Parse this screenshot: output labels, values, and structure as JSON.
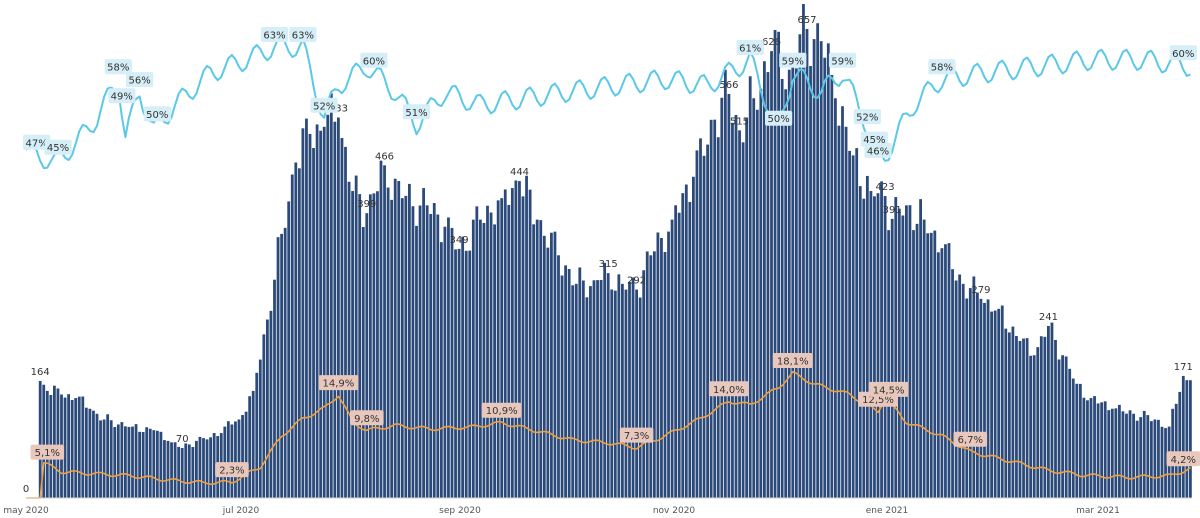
{
  "chart_data": {
    "type": "bar",
    "x_ticks": [
      "may 2020",
      "jul 2020",
      "sep 2020",
      "nov 2020",
      "ene 2021",
      "mar 2021"
    ],
    "colors": {
      "bars": "#2b4a7a",
      "positivity_line": "#f0a040",
      "positivity_label_bg": "#e8c8bc",
      "share_line": "#5ac8e8",
      "share_label_bg": "#d5eef7"
    },
    "bars": {
      "anchors": [
        {
          "day": 0,
          "value": 0
        },
        {
          "day": 3,
          "value": 0
        },
        {
          "day": 4,
          "value": 164
        },
        {
          "day": 6,
          "value": 150
        },
        {
          "day": 10,
          "value": 145
        },
        {
          "day": 14,
          "value": 140
        },
        {
          "day": 18,
          "value": 125
        },
        {
          "day": 22,
          "value": 110
        },
        {
          "day": 30,
          "value": 100
        },
        {
          "day": 36,
          "value": 95
        },
        {
          "day": 40,
          "value": 80
        },
        {
          "day": 44,
          "value": 70
        },
        {
          "day": 48,
          "value": 80
        },
        {
          "day": 52,
          "value": 85
        },
        {
          "day": 56,
          "value": 100
        },
        {
          "day": 60,
          "value": 110
        },
        {
          "day": 64,
          "value": 150
        },
        {
          "day": 68,
          "value": 250
        },
        {
          "day": 72,
          "value": 370
        },
        {
          "day": 76,
          "value": 470
        },
        {
          "day": 80,
          "value": 510
        },
        {
          "day": 84,
          "value": 520
        },
        {
          "day": 88,
          "value": 533
        },
        {
          "day": 92,
          "value": 430
        },
        {
          "day": 96,
          "value": 399
        },
        {
          "day": 101,
          "value": 466
        },
        {
          "day": 106,
          "value": 420
        },
        {
          "day": 113,
          "value": 410
        },
        {
          "day": 118,
          "value": 380
        },
        {
          "day": 122,
          "value": 349
        },
        {
          "day": 128,
          "value": 390
        },
        {
          "day": 134,
          "value": 420
        },
        {
          "day": 139,
          "value": 444
        },
        {
          "day": 144,
          "value": 390
        },
        {
          "day": 150,
          "value": 340
        },
        {
          "day": 155,
          "value": 300
        },
        {
          "day": 160,
          "value": 305
        },
        {
          "day": 164,
          "value": 315
        },
        {
          "day": 168,
          "value": 300
        },
        {
          "day": 172,
          "value": 292
        },
        {
          "day": 176,
          "value": 340
        },
        {
          "day": 182,
          "value": 390
        },
        {
          "day": 188,
          "value": 450
        },
        {
          "day": 194,
          "value": 530
        },
        {
          "day": 198,
          "value": 566
        },
        {
          "day": 201,
          "value": 515
        },
        {
          "day": 205,
          "value": 560
        },
        {
          "day": 210,
          "value": 626
        },
        {
          "day": 215,
          "value": 600
        },
        {
          "day": 220,
          "value": 657
        },
        {
          "day": 224,
          "value": 640
        },
        {
          "day": 228,
          "value": 560
        },
        {
          "day": 233,
          "value": 480
        },
        {
          "day": 238,
          "value": 430
        },
        {
          "day": 242,
          "value": 423
        },
        {
          "day": 244,
          "value": 391
        },
        {
          "day": 248,
          "value": 410
        },
        {
          "day": 253,
          "value": 390
        },
        {
          "day": 258,
          "value": 350
        },
        {
          "day": 264,
          "value": 300
        },
        {
          "day": 269,
          "value": 279
        },
        {
          "day": 274,
          "value": 265
        },
        {
          "day": 280,
          "value": 220
        },
        {
          "day": 284,
          "value": 200
        },
        {
          "day": 288,
          "value": 241
        },
        {
          "day": 292,
          "value": 200
        },
        {
          "day": 296,
          "value": 160
        },
        {
          "day": 300,
          "value": 140
        },
        {
          "day": 306,
          "value": 125
        },
        {
          "day": 312,
          "value": 118
        },
        {
          "day": 318,
          "value": 110
        },
        {
          "day": 322,
          "value": 100
        },
        {
          "day": 326,
          "value": 171
        },
        {
          "day": 328,
          "value": 165
        }
      ],
      "labels": [
        {
          "day": 0,
          "text": "0"
        },
        {
          "day": 4,
          "text": "164"
        },
        {
          "day": 44,
          "text": "70"
        },
        {
          "day": 88,
          "text": "533"
        },
        {
          "day": 96,
          "text": "399"
        },
        {
          "day": 101,
          "text": "466"
        },
        {
          "day": 122,
          "text": "349"
        },
        {
          "day": 139,
          "text": "444"
        },
        {
          "day": 164,
          "text": "315"
        },
        {
          "day": 172,
          "text": "292"
        },
        {
          "day": 198,
          "text": "566"
        },
        {
          "day": 201,
          "text": "515"
        },
        {
          "day": 210,
          "text": "626"
        },
        {
          "day": 220,
          "text": "657"
        },
        {
          "day": 242,
          "text": "423"
        },
        {
          "day": 244,
          "text": "391"
        },
        {
          "day": 269,
          "text": "279"
        },
        {
          "day": 288,
          "text": "241"
        },
        {
          "day": 326,
          "text": "171"
        }
      ]
    },
    "positivity_line": {
      "anchors": [
        {
          "day": 0,
          "value": 0
        },
        {
          "day": 4,
          "value": 0
        },
        {
          "day": 5,
          "value": 5.1
        },
        {
          "day": 10,
          "value": 3.8
        },
        {
          "day": 20,
          "value": 3.5
        },
        {
          "day": 30,
          "value": 3.2
        },
        {
          "day": 40,
          "value": 2.6
        },
        {
          "day": 50,
          "value": 2.2
        },
        {
          "day": 58,
          "value": 2.3
        },
        {
          "day": 66,
          "value": 4.5
        },
        {
          "day": 72,
          "value": 9.0
        },
        {
          "day": 78,
          "value": 11.5
        },
        {
          "day": 84,
          "value": 13.0
        },
        {
          "day": 88,
          "value": 14.9
        },
        {
          "day": 92,
          "value": 11.0
        },
        {
          "day": 96,
          "value": 9.8
        },
        {
          "day": 104,
          "value": 10.5
        },
        {
          "day": 114,
          "value": 10.0
        },
        {
          "day": 126,
          "value": 10.3
        },
        {
          "day": 134,
          "value": 10.9
        },
        {
          "day": 144,
          "value": 9.7
        },
        {
          "day": 154,
          "value": 8.4
        },
        {
          "day": 164,
          "value": 8.0
        },
        {
          "day": 172,
          "value": 7.3
        },
        {
          "day": 180,
          "value": 9.0
        },
        {
          "day": 190,
          "value": 11.5
        },
        {
          "day": 198,
          "value": 14.0
        },
        {
          "day": 204,
          "value": 13.5
        },
        {
          "day": 212,
          "value": 16.0
        },
        {
          "day": 216,
          "value": 18.1
        },
        {
          "day": 222,
          "value": 16.5
        },
        {
          "day": 232,
          "value": 15.0
        },
        {
          "day": 240,
          "value": 12.5
        },
        {
          "day": 242,
          "value": 14.5
        },
        {
          "day": 248,
          "value": 11.0
        },
        {
          "day": 258,
          "value": 9.0
        },
        {
          "day": 266,
          "value": 6.7
        },
        {
          "day": 276,
          "value": 5.5
        },
        {
          "day": 288,
          "value": 4.0
        },
        {
          "day": 298,
          "value": 3.3
        },
        {
          "day": 310,
          "value": 3.0
        },
        {
          "day": 322,
          "value": 3.2
        },
        {
          "day": 328,
          "value": 4.2
        }
      ],
      "labels": [
        {
          "day": 6,
          "text": "5,1%"
        },
        {
          "day": 58,
          "text": "2,3%"
        },
        {
          "day": 88,
          "text": "14,9%"
        },
        {
          "day": 96,
          "text": "9,8%"
        },
        {
          "day": 134,
          "text": "10,9%"
        },
        {
          "day": 172,
          "text": "7,3%"
        },
        {
          "day": 198,
          "text": "14,0%"
        },
        {
          "day": 216,
          "text": "18,1%"
        },
        {
          "day": 240,
          "text": "12,5%"
        },
        {
          "day": 243,
          "text": "14,5%"
        },
        {
          "day": 266,
          "text": "6,7%"
        },
        {
          "day": 326,
          "text": "4,2%"
        }
      ]
    },
    "share_line": {
      "anchors": [
        {
          "day": 0,
          "value": 47
        },
        {
          "day": 4,
          "value": 46
        },
        {
          "day": 8,
          "value": 45
        },
        {
          "day": 14,
          "value": 48
        },
        {
          "day": 20,
          "value": 52
        },
        {
          "day": 26,
          "value": 58
        },
        {
          "day": 28,
          "value": 49
        },
        {
          "day": 32,
          "value": 56
        },
        {
          "day": 36,
          "value": 50
        },
        {
          "day": 42,
          "value": 54
        },
        {
          "day": 52,
          "value": 59
        },
        {
          "day": 62,
          "value": 61
        },
        {
          "day": 70,
          "value": 63
        },
        {
          "day": 78,
          "value": 63
        },
        {
          "day": 84,
          "value": 52
        },
        {
          "day": 88,
          "value": 57
        },
        {
          "day": 96,
          "value": 60
        },
        {
          "day": 104,
          "value": 56
        },
        {
          "day": 110,
          "value": 51
        },
        {
          "day": 118,
          "value": 56
        },
        {
          "day": 128,
          "value": 54
        },
        {
          "day": 140,
          "value": 55
        },
        {
          "day": 152,
          "value": 56
        },
        {
          "day": 166,
          "value": 57
        },
        {
          "day": 180,
          "value": 58
        },
        {
          "day": 192,
          "value": 57
        },
        {
          "day": 204,
          "value": 61
        },
        {
          "day": 212,
          "value": 50
        },
        {
          "day": 216,
          "value": 59
        },
        {
          "day": 224,
          "value": 56
        },
        {
          "day": 230,
          "value": 59
        },
        {
          "day": 236,
          "value": 52
        },
        {
          "day": 240,
          "value": 45
        },
        {
          "day": 242,
          "value": 46
        },
        {
          "day": 250,
          "value": 54
        },
        {
          "day": 258,
          "value": 58
        },
        {
          "day": 270,
          "value": 59
        },
        {
          "day": 285,
          "value": 60
        },
        {
          "day": 300,
          "value": 61
        },
        {
          "day": 315,
          "value": 61
        },
        {
          "day": 328,
          "value": 60
        }
      ],
      "labels": [
        {
          "day": 3,
          "text": "47%"
        },
        {
          "day": 9,
          "text": "45%"
        },
        {
          "day": 26,
          "text": "58%"
        },
        {
          "day": 27,
          "text": "49%"
        },
        {
          "day": 32,
          "text": "56%"
        },
        {
          "day": 37,
          "text": "50%"
        },
        {
          "day": 70,
          "text": "63%"
        },
        {
          "day": 78,
          "text": "63%"
        },
        {
          "day": 84,
          "text": "52%"
        },
        {
          "day": 98,
          "text": "60%"
        },
        {
          "day": 110,
          "text": "51%"
        },
        {
          "day": 204,
          "text": "61%"
        },
        {
          "day": 212,
          "text": "50%"
        },
        {
          "day": 216,
          "text": "59%"
        },
        {
          "day": 230,
          "text": "59%"
        },
        {
          "day": 237,
          "text": "52%"
        },
        {
          "day": 240,
          "text": "46%"
        },
        {
          "day": 239,
          "text": "45%"
        },
        {
          "day": 258,
          "text": "58%"
        },
        {
          "day": 326,
          "text": "60%"
        }
      ]
    }
  }
}
